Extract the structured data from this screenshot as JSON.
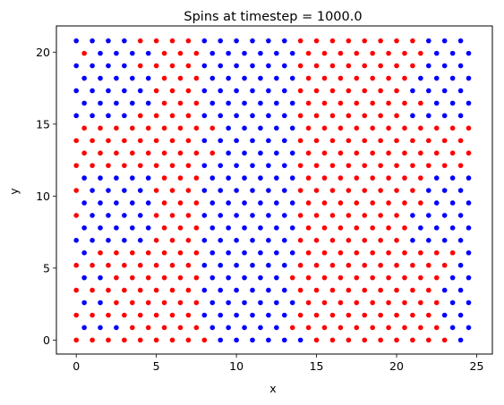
{
  "chart_data": {
    "type": "scatter",
    "title": "Spins at timestep = 1000.0",
    "xlabel": "x",
    "ylabel": "y",
    "xlim": [
      -1.24,
      25.98
    ],
    "ylim": [
      -0.97,
      21.82
    ],
    "xticks": [
      0,
      5,
      10,
      15,
      20,
      25
    ],
    "yticks": [
      0,
      5,
      10,
      15,
      20
    ],
    "xtick_labels": [
      "0",
      "5",
      "10",
      "15",
      "20",
      "25"
    ],
    "ytick_labels": [
      "0",
      "5",
      "10",
      "15",
      "20"
    ],
    "grid": false,
    "lattice": "triangular",
    "lattice_constant": 1.0,
    "row_spacing": 0.866,
    "rows": 25,
    "columns": 25,
    "series": [
      {
        "color": "#0000ff",
        "points": "sites with spin down (blue)"
      },
      {
        "color": "#ff0000",
        "points": "sites with spin up (red)"
      }
    ],
    "spin_rows": [
      "RRRRRRRRRBBBBBBRRRRRRRRRB",
      "BBBRRRRRBBBBBRRRRRRRRRRBB",
      "RRRRRRRRBBBBBBRRRRRRRRRBB",
      "BBRRRRRRBBBBBBRRRRRRRRRBB",
      "RRRRRRRRBBBBBBRRRRRRRRRBB",
      "BBRRRRRRBBBBBRRRRRRRRRRBB",
      "RRRRRRRRBBBBBBRRRRRRRRRRB",
      "BRRRRRRRBBBBBBRRRRRRRRRRB",
      "BBBBBRRRBBBBBBRRRRRRRBBBB",
      "BBBBBRRRBBBBBBRRRRRRRBBBB",
      "RBBBBRRRBBBBBBRRRRRRRBBBB",
      "BBBBBRRRBBBBBBRRRRRRRRBBB",
      "RBBBBRRRBBBBBBRRRRRRRRBBB",
      "BBBBBRRRBBBBBBRRRRRRRRBBB",
      "RRRRRRRRBBBBBBRRRRRRRRRRR",
      "RRRRRRRRRBBBBBRRRRRRRRRRR",
      "RRRRRRRRBBBBBBRRRRRRRRRRR",
      "RRRRRRRRRBBBBBRRRRRRRRRRR",
      "BBBBRRRRBBBBBBRRRRRRRBBBB",
      "BBBBBRRRBBBBBBRRRRRRRRBBB",
      "BBBBBRRRBBBBBBRRRRRRRBBBB",
      "BBBBBRRRBBBBBBRRRRRRRBBBB",
      "BBBBRRRRBBBBBBRRRRRRRRBBB",
      "RBBBBRRRBBBBBBRRRRRRRRBBB",
      "BBBBRRRRBBBBBBRRRRRRRRBBB"
    ]
  }
}
